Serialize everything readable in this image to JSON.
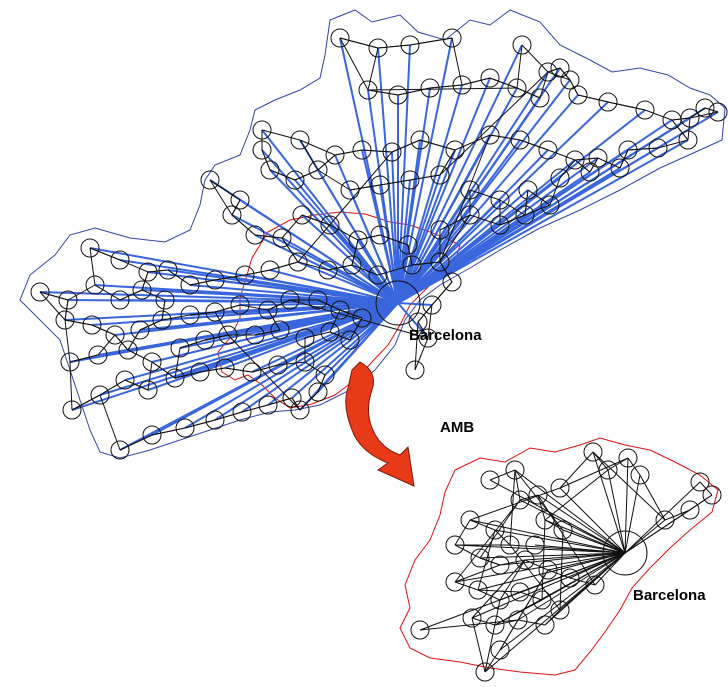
{
  "labels": {
    "barcelona_main": "Barcelona",
    "amb": "AMB",
    "barcelona_inset": "Barcelona"
  },
  "colors": {
    "region_boundary": "#3344aa",
    "amb_boundary": "#e01010",
    "link_to_barcelona": "#3a66dd",
    "link_other": "#111111",
    "node_circle": "#111111",
    "arrow_fill": "#e83a18",
    "arrow_stroke": "#7a1a08"
  },
  "icons": {
    "transition_arrow": "curved-arrow-icon"
  }
}
